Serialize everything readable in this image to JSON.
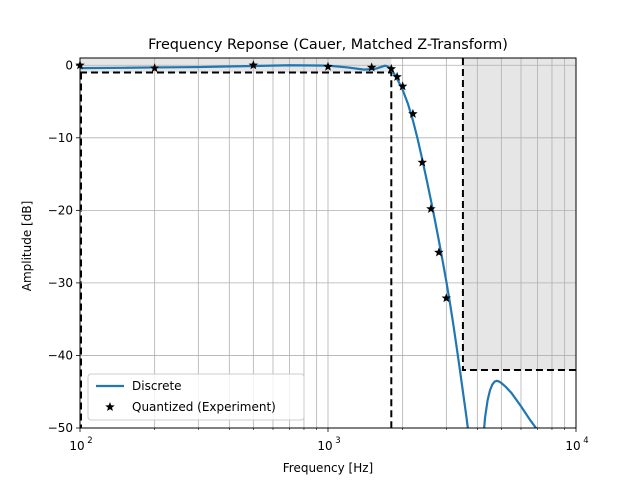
{
  "chart_data": {
    "type": "line",
    "title": "Frequency Reponse (Cauer, Matched Z-Transform)",
    "xlabel": "Frequency [Hz]",
    "ylabel": "Amplitude [dB]",
    "xscale": "log",
    "xlim": [
      100,
      10000
    ],
    "ylim": [
      -50,
      1
    ],
    "x_ticks": [
      {
        "value": 100,
        "base": "10",
        "exp": "2"
      },
      {
        "value": 1000,
        "base": "10",
        "exp": "3"
      },
      {
        "value": 10000,
        "base": "10",
        "exp": "4"
      }
    ],
    "y_ticks": [
      {
        "value": 0,
        "label": "0"
      },
      {
        "value": -10,
        "label": "−10"
      },
      {
        "value": -20,
        "label": "−20"
      },
      {
        "value": -30,
        "label": "−30"
      },
      {
        "value": -40,
        "label": "−40"
      },
      {
        "value": -50,
        "label": "−50"
      }
    ],
    "grid": true,
    "legend_position": "lower-left",
    "series": [
      {
        "name": "Discrete",
        "color": "#1f77b4",
        "style": "line",
        "segments": [
          {
            "x": [
              100,
              150,
              200,
              300,
              500,
              700,
              1000,
              1200,
              1400,
              1550,
              1650,
              1700,
              1750,
              1800,
              1850,
              1900,
              1950,
              2000,
              2100,
              2200,
              2300,
              2400,
              2500,
              2600,
              2700,
              2800,
              2900,
              3000,
              3100,
              3200,
              3300,
              3400,
              3500,
              3600,
              3680
            ],
            "y": [
              -0.4,
              -0.35,
              -0.3,
              -0.25,
              -0.1,
              0,
              -0.05,
              -0.3,
              -0.6,
              -0.5,
              -0.2,
              -0.05,
              -0.2,
              -0.6,
              -1.2,
              -1.9,
              -2.6,
              -3.4,
              -5.3,
              -7.6,
              -10.2,
              -13.0,
              -15.8,
              -18.6,
              -21.4,
              -24.2,
              -27.0,
              -29.8,
              -32.7,
              -35.7,
              -38.8,
              -41.9,
              -45.0,
              -48.0,
              -50.5
            ]
          },
          {
            "x": [
              4250,
              4300,
              4400,
              4500,
              4600,
              4700,
              4800,
              4900,
              5000,
              5200,
              5500,
              6000,
              6500,
              7000,
              7400
            ],
            "y": [
              -50.5,
              -48.5,
              -46.2,
              -44.8,
              -44.0,
              -43.6,
              -43.5,
              -43.6,
              -43.8,
              -44.3,
              -45.2,
              -47.0,
              -48.8,
              -50.3,
              -51.5
            ]
          }
        ]
      },
      {
        "name": "Quantized (Experiment)",
        "color": "#000000",
        "style": "star-markers",
        "x": [
          100,
          200,
          500,
          1000,
          1500,
          1800,
          1900,
          2000,
          2200,
          2400,
          2600,
          2800,
          3000
        ],
        "y": [
          0,
          -0.4,
          0,
          -0.2,
          -0.3,
          -0.5,
          -1.6,
          -2.9,
          -6.7,
          -13.4,
          -19.8,
          -25.8,
          -32.1
        ]
      }
    ],
    "spec_regions": [
      {
        "name": "passband",
        "x": [
          100,
          1800
        ],
        "y": [
          -1,
          1
        ]
      },
      {
        "name": "stopband",
        "x": [
          3500,
          10000
        ],
        "y": [
          -42,
          1
        ]
      }
    ]
  }
}
